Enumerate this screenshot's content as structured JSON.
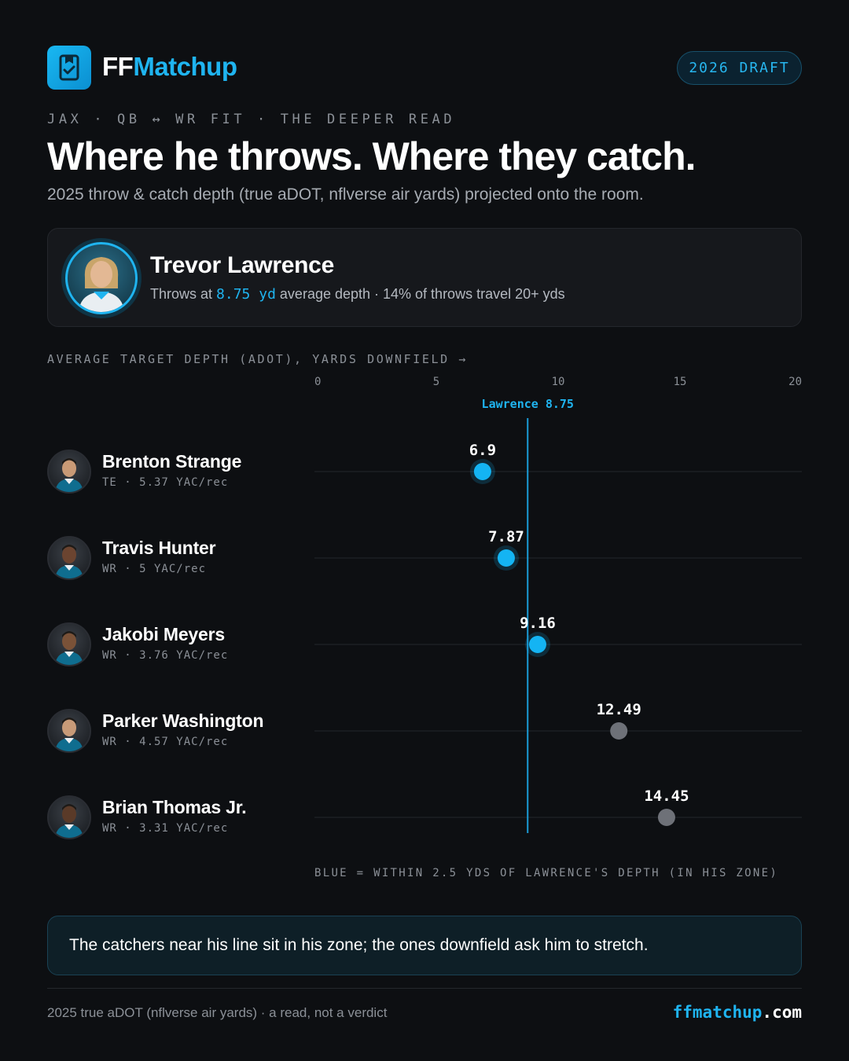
{
  "brand": {
    "logo_ff": "FF",
    "logo_matchup": "Matchup",
    "accent": "#1fb4f0"
  },
  "badge": "2026 DRAFT",
  "eyebrow": "JAX · QB ↔ WR FIT · THE DEEPER READ",
  "headline": "Where he throws. Where they catch.",
  "subhead": "2025 throw & catch depth (true aDOT, nflverse air yards) projected onto the room.",
  "qb": {
    "name": "Trevor Lawrence",
    "desc_prefix": "Throws at",
    "depth_value": "8.75 yd",
    "desc_suffix": "average depth · 14% of throws travel 20+ yds"
  },
  "chart_data": {
    "type": "scatter",
    "title": "AVERAGE TARGET DEPTH (ADOT), YARDS DOWNFIELD →",
    "xlim": [
      0,
      20
    ],
    "ticks": [
      0,
      5,
      10,
      15,
      20
    ],
    "reference_line": {
      "label": "Lawrence 8.75",
      "value": 8.75
    },
    "zone_tolerance": 2.5,
    "colors": {
      "in_zone": "#14b4f3",
      "out_zone": "#6e7178",
      "line": "#1a9bd6"
    },
    "legend_note": "BLUE = WITHIN 2.5 YDS OF LAWRENCE'S DEPTH (IN HIS ZONE)",
    "players": [
      {
        "name": "Brenton Strange",
        "meta": "TE · 5.37 YAC/rec",
        "adot": 6.9,
        "label": "6.9"
      },
      {
        "name": "Travis Hunter",
        "meta": "WR · 5 YAC/rec",
        "adot": 7.87,
        "label": "7.87"
      },
      {
        "name": "Jakobi Meyers",
        "meta": "WR · 3.76 YAC/rec",
        "adot": 9.16,
        "label": "9.16"
      },
      {
        "name": "Parker Washington",
        "meta": "WR · 4.57 YAC/rec",
        "adot": 12.49,
        "label": "12.49"
      },
      {
        "name": "Brian Thomas Jr.",
        "meta": "WR · 3.31 YAC/rec",
        "adot": 14.45,
        "label": "14.45"
      }
    ]
  },
  "callout": "The catchers near his line sit in his zone; the ones downfield ask him to stretch.",
  "footer": {
    "left": "2025 true aDOT (nflverse air yards) · a read, not a verdict",
    "domain_a": "ffmatchup",
    "domain_b": ".com"
  }
}
